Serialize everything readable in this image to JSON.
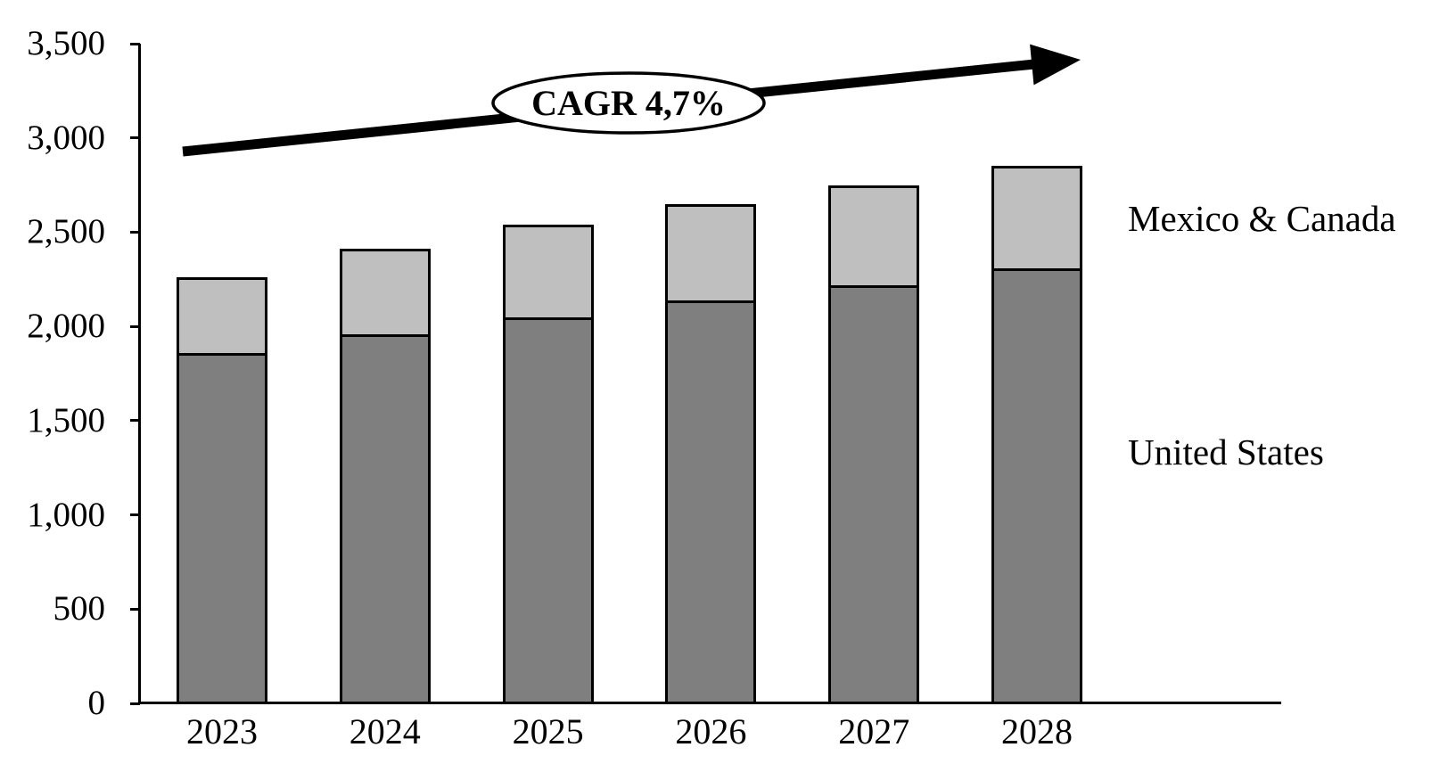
{
  "chart_data": {
    "type": "bar",
    "stacked": true,
    "title": "",
    "xlabel": "",
    "ylabel": "",
    "categories": [
      "2023",
      "2024",
      "2025",
      "2026",
      "2027",
      "2028"
    ],
    "series": [
      {
        "name": "United States",
        "color": "#7F7F7F",
        "values": [
          1850,
          1950,
          2040,
          2130,
          2210,
          2300
        ]
      },
      {
        "name": "Mexico & Canada",
        "color": "#BFBFBF",
        "values": [
          410,
          460,
          500,
          520,
          540,
          550
        ]
      }
    ],
    "totals": [
      2260,
      2410,
      2540,
      2650,
      2750,
      2850
    ],
    "ylim": [
      0,
      3500
    ],
    "ytick_step": 500,
    "ytick_labels": [
      "0",
      "500",
      "1,000",
      "1,500",
      "2,000",
      "2,500",
      "3,000",
      "3,500"
    ],
    "grid": false,
    "legend_position": "right-inline-labels",
    "annotation": {
      "label": "CAGR 4,7%",
      "shape": "ellipse-on-arrow"
    }
  },
  "colors": {
    "united_states": "#7F7F7F",
    "mexico_canada": "#BFBFBF",
    "axis": "#000000",
    "arrow": "#000000",
    "ellipse_fill": "#FFFFFF",
    "background": "#FFFFFF"
  }
}
